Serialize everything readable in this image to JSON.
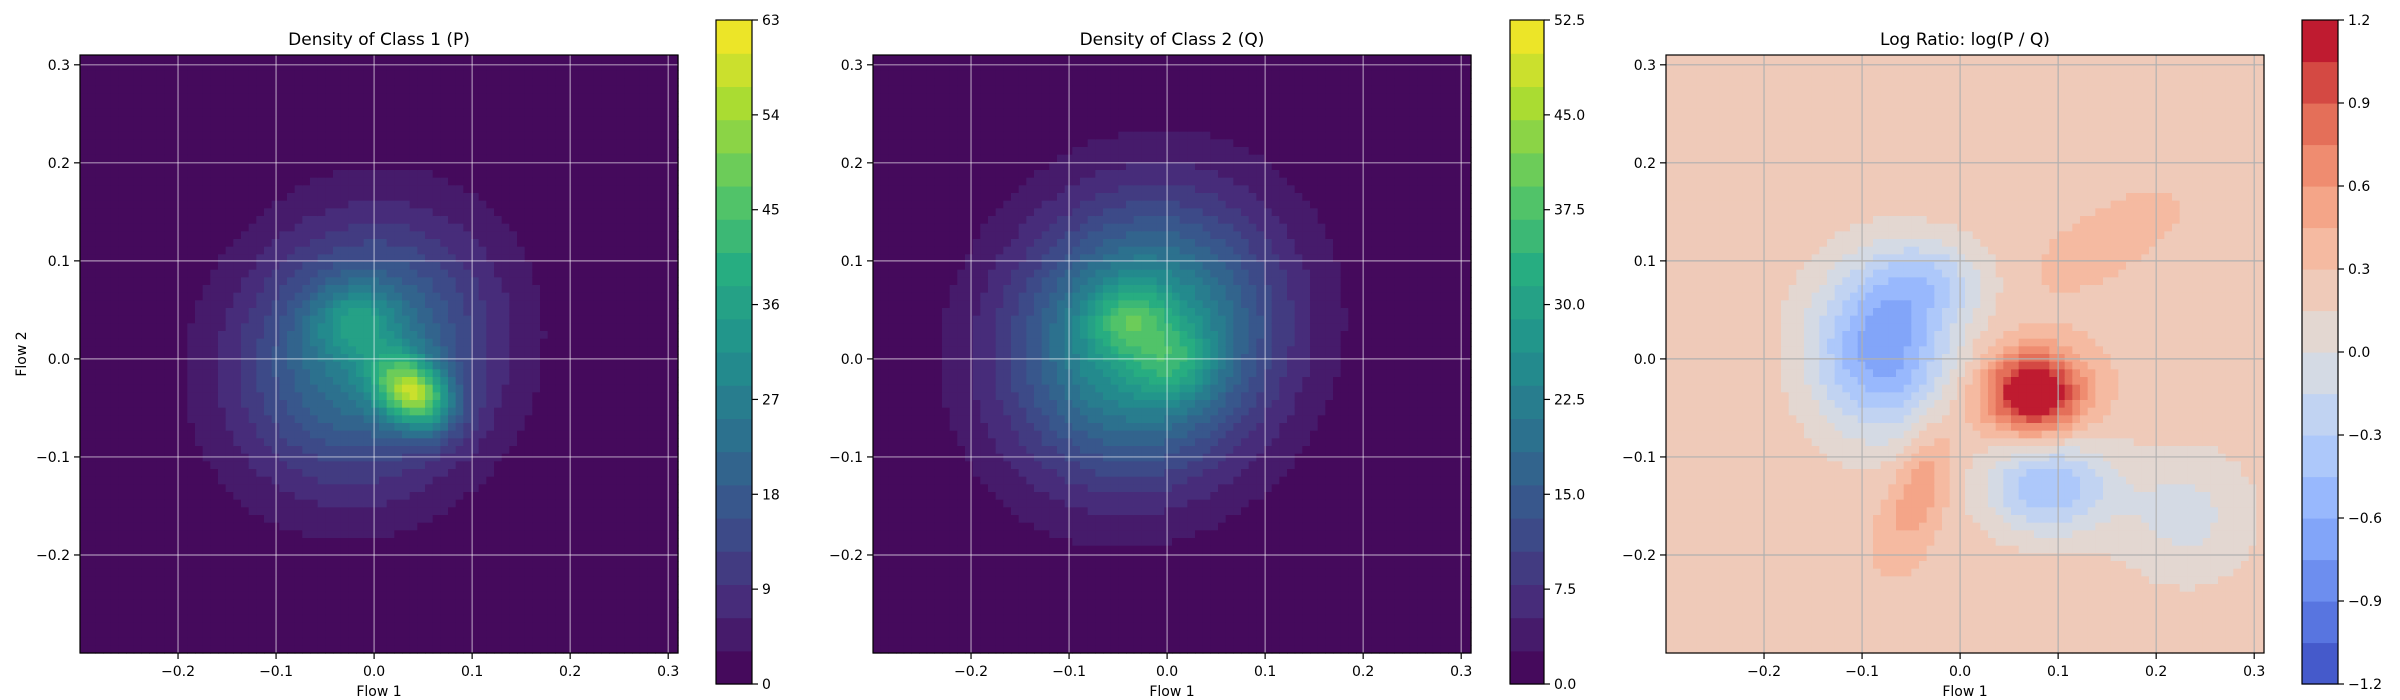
{
  "chart_data": [
    {
      "type": "heatmap",
      "title": "Density of Class 1 (P)",
      "xlabel": "Flow 1",
      "ylabel": "Flow 2",
      "xlim": [
        -0.3,
        0.31
      ],
      "ylim": [
        -0.3,
        0.31
      ],
      "xticks": [
        -0.2,
        -0.1,
        0.0,
        0.1,
        0.2,
        0.3
      ],
      "yticks": [
        -0.2,
        -0.1,
        0.0,
        0.1,
        0.2,
        0.3
      ],
      "grid": true,
      "colormap": "viridis",
      "colorbar": {
        "min": 0,
        "max": 63,
        "ticks": [
          0,
          9,
          18,
          27,
          36,
          45,
          54,
          63
        ],
        "tick_labels": [
          "0",
          "9",
          "18",
          "27",
          "36",
          "45",
          "54",
          "63"
        ]
      },
      "blobs": [
        {
          "x": -0.01,
          "y": 0.005,
          "sx": 0.085,
          "sy": 0.095,
          "rot": -35,
          "value": 27
        },
        {
          "x": 0.04,
          "y": -0.035,
          "sx": 0.03,
          "sy": 0.022,
          "rot": -40,
          "value": 37
        },
        {
          "x": -0.02,
          "y": 0.04,
          "sx": 0.03,
          "sy": 0.025,
          "rot": 0,
          "value": 12
        }
      ]
    },
    {
      "type": "heatmap",
      "title": "Density of Class 2 (Q)",
      "xlabel": "Flow 1",
      "ylabel": "",
      "xlim": [
        -0.3,
        0.31
      ],
      "ylim": [
        -0.3,
        0.31
      ],
      "xticks": [
        -0.2,
        -0.1,
        0.0,
        0.1,
        0.2,
        0.3
      ],
      "yticks": [
        -0.2,
        -0.1,
        0.0,
        0.1,
        0.2,
        0.3
      ],
      "grid": true,
      "colormap": "viridis",
      "colorbar": {
        "min": 0,
        "max": 52.5,
        "ticks": [
          0,
          7.5,
          15,
          22.5,
          30,
          37.5,
          45,
          52.5
        ],
        "tick_labels": [
          "0.0",
          "7.5",
          "15.0",
          "22.5",
          "30.0",
          "37.5",
          "45.0",
          "52.5"
        ]
      },
      "blobs": [
        {
          "x": -0.025,
          "y": 0.02,
          "sx": 0.09,
          "sy": 0.1,
          "rot": -35,
          "value": 30
        },
        {
          "x": -0.04,
          "y": 0.04,
          "sx": 0.028,
          "sy": 0.025,
          "rot": 0,
          "value": 10
        },
        {
          "x": 0.01,
          "y": -0.005,
          "sx": 0.028,
          "sy": 0.028,
          "rot": 0,
          "value": 8
        }
      ]
    },
    {
      "type": "heatmap",
      "title": "Log Ratio: log(P / Q)",
      "xlabel": "Flow 1",
      "ylabel": "",
      "xlim": [
        -0.3,
        0.31
      ],
      "ylim": [
        -0.3,
        0.31
      ],
      "xticks": [
        -0.2,
        -0.1,
        0.0,
        0.1,
        0.2,
        0.3
      ],
      "yticks": [
        -0.2,
        -0.1,
        0.0,
        0.1,
        0.2,
        0.3
      ],
      "grid": true,
      "colormap": "coolwarm",
      "colorbar": {
        "min": -1.2,
        "max": 1.2,
        "ticks": [
          -1.2,
          -0.9,
          -0.6,
          -0.3,
          0.0,
          0.3,
          0.6,
          0.9,
          1.2
        ],
        "tick_labels": [
          "−1.2",
          "−0.9",
          "−0.6",
          "−0.3",
          "0.0",
          "0.3",
          "0.6",
          "0.9",
          "1.2"
        ]
      },
      "background_value": 0.25,
      "blobs": [
        {
          "x": -0.08,
          "y": 0.01,
          "sx": 0.05,
          "sy": 0.06,
          "rot": 0,
          "value": -0.95
        },
        {
          "x": 0.075,
          "y": -0.035,
          "sx": 0.035,
          "sy": 0.03,
          "rot": 0,
          "value": 1.15
        },
        {
          "x": 0.09,
          "y": -0.13,
          "sx": 0.045,
          "sy": 0.035,
          "rot": 0,
          "value": -0.7
        },
        {
          "x": -0.03,
          "y": 0.08,
          "sx": 0.04,
          "sy": 0.03,
          "rot": 0,
          "value": -0.4
        },
        {
          "x": -0.04,
          "y": -0.13,
          "sx": 0.02,
          "sy": 0.05,
          "rot": -20,
          "value": 0.35
        },
        {
          "x": 0.15,
          "y": 0.12,
          "sx": 0.05,
          "sy": 0.02,
          "rot": 30,
          "value": 0.2
        },
        {
          "x": 0.23,
          "y": -0.16,
          "sx": 0.05,
          "sy": 0.05,
          "rot": 0,
          "value": -0.3
        }
      ]
    }
  ]
}
